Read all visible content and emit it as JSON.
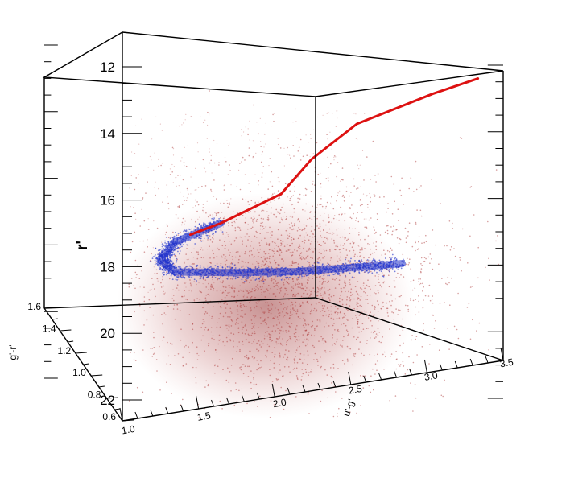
{
  "chart_data": {
    "type": "scatter",
    "projection": "3d",
    "axes": {
      "r": {
        "label": "r'",
        "range": [
          12,
          22
        ],
        "tick_labels": [
          "12",
          "14",
          "16",
          "18",
          "20",
          "22"
        ],
        "inverted": true
      },
      "ug": {
        "label": "u'-g'",
        "range": [
          1.0,
          3.5
        ],
        "tick_labels": [
          "1.0",
          "1.5",
          "2.0",
          "2.5",
          "3.0",
          "3.5"
        ]
      },
      "gr": {
        "label": "g'-r'",
        "range": [
          0.6,
          1.6
        ],
        "tick_labels": [
          "0.6",
          "0.8",
          "1.0",
          "1.2",
          "1.4",
          "1.6"
        ]
      }
    },
    "series": [
      {
        "color": "#b04040",
        "kind": "diffuse-scatter",
        "center": {
          "ug": 2.0,
          "r": 18.3
        }
      },
      {
        "color": "#2233cc",
        "kind": "dense-sequence",
        "points": [
          [
            1.5,
            16.8
          ],
          [
            1.2,
            17.3
          ],
          [
            1.1,
            17.8
          ],
          [
            1.2,
            18.2
          ],
          [
            1.6,
            18.3
          ],
          [
            2.0,
            18.35
          ],
          [
            2.4,
            18.3
          ],
          [
            2.7,
            18.25
          ]
        ]
      },
      {
        "color": "#dd1111",
        "kind": "model-curve",
        "points": [
          [
            1.3,
            17.1
          ],
          [
            1.5,
            16.8
          ],
          [
            1.6,
            16.6
          ],
          [
            1.9,
            16.0
          ],
          [
            2.1,
            15.0
          ],
          [
            2.4,
            14.0
          ],
          [
            2.9,
            13.2
          ],
          [
            3.2,
            12.8
          ]
        ]
      }
    ],
    "colors": {
      "background": "#ffffff",
      "frame": "#000000",
      "diffuse": "#b04040",
      "sequence": "#2233cc",
      "curve": "#dd1111"
    }
  }
}
